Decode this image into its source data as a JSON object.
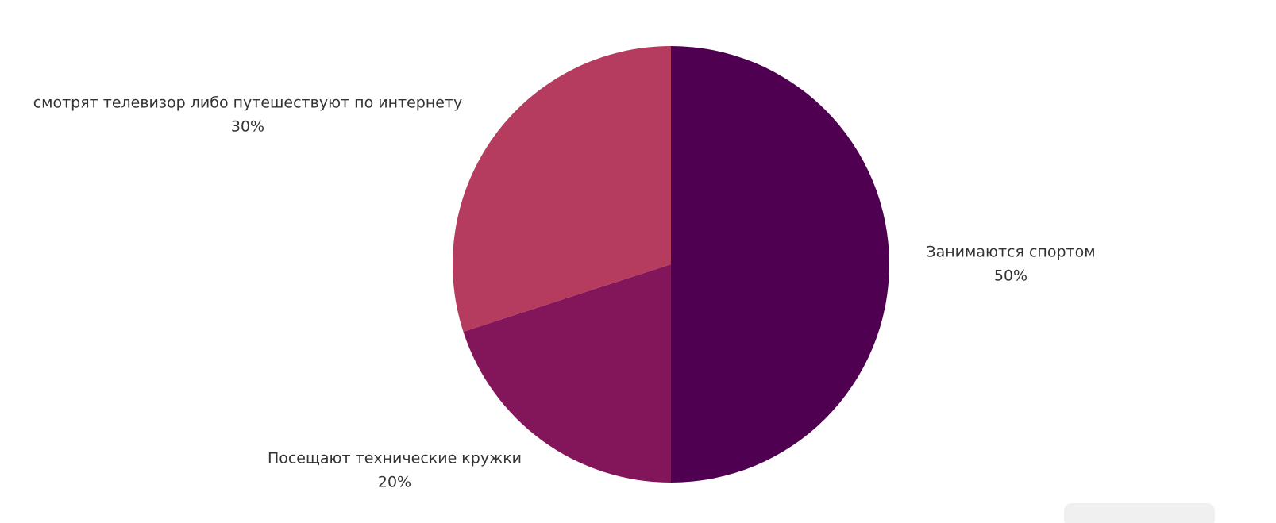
{
  "chart_data": {
    "type": "pie",
    "categories": [
      "Занимаются спортом",
      "Посещают технические кружки",
      "смотрят телевизор либо путешествуют  по интернету"
    ],
    "values": [
      50,
      20,
      30
    ],
    "value_labels": [
      "50%",
      "20%",
      "30%"
    ],
    "colors": [
      "#4f0050",
      "#83155a",
      "#b53c5f"
    ]
  }
}
